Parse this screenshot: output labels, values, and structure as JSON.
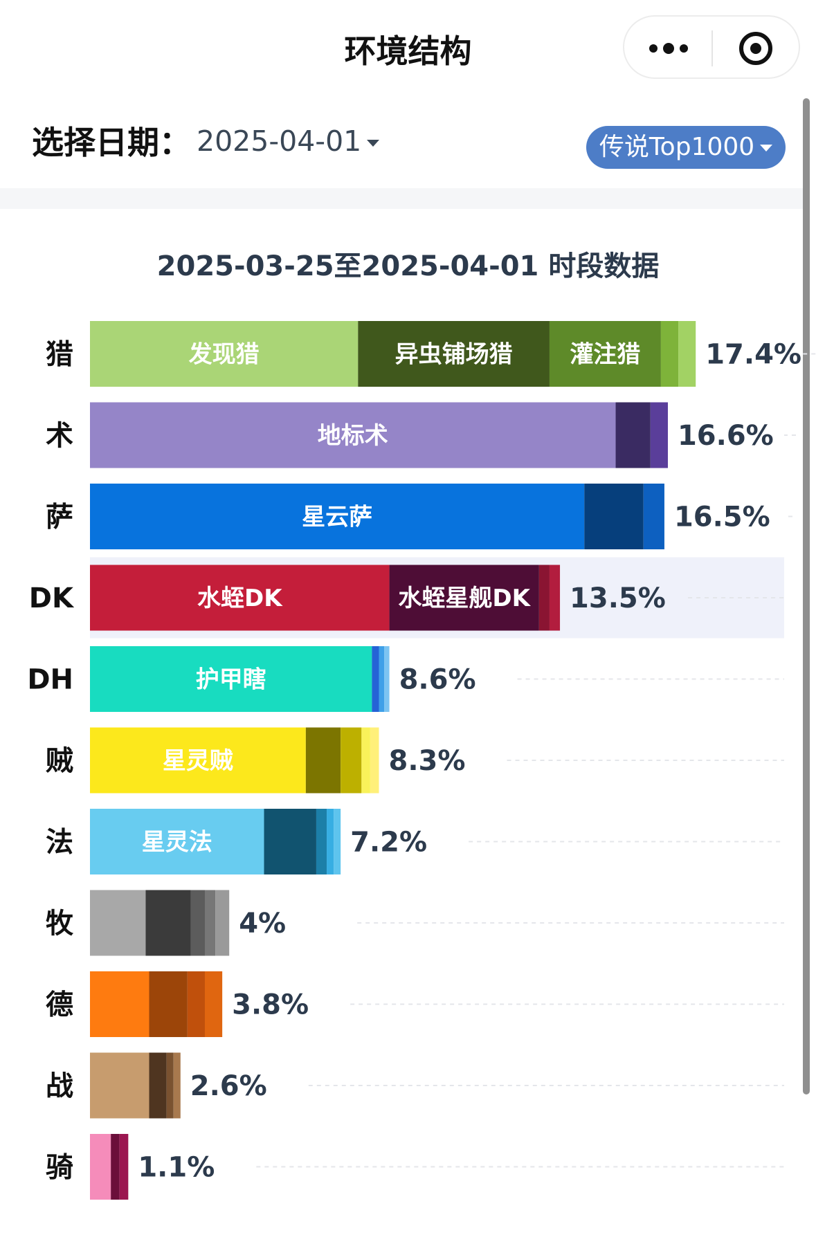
{
  "header": {
    "title": "环境结构",
    "more_icon": "more-dots-icon",
    "close_icon": "target-close-icon"
  },
  "filters": {
    "date_label": "选择日期：",
    "date_value": "2025-04-01",
    "mode_label": "传说Top1000"
  },
  "colors": {
    "mode_button": "#4d7dc7",
    "highlight_row": "#eff1fa",
    "title_text": "#2c3a4c"
  },
  "chart_data": {
    "type": "bar",
    "orientation": "horizontal",
    "stacked": true,
    "title": "2025-03-25至2025-04-01 时段数据",
    "unit": "%",
    "highlight": "DK",
    "categories": [
      "猎",
      "术",
      "萨",
      "DK",
      "DH",
      "贼",
      "法",
      "牧",
      "德",
      "战",
      "骑"
    ],
    "totals": [
      "17.4%",
      "16.6%",
      "16.5%",
      "13.5%",
      "8.6%",
      "8.3%",
      "7.2%",
      "4%",
      "3.8%",
      "2.6%",
      "1.1%"
    ],
    "rows": [
      {
        "category": "猎",
        "total": 17.4,
        "segments": [
          {
            "name": "发现猎",
            "value": 7.7,
            "color": "#aad576"
          },
          {
            "name": "异虫铺场猎",
            "value": 5.5,
            "color": "#40581c"
          },
          {
            "name": "灌注猎",
            "value": 3.2,
            "color": "#5e8a29"
          },
          {
            "name": "",
            "value": 0.5,
            "color": "#7eb33a"
          },
          {
            "name": "",
            "value": 0.5,
            "color": "#a2d264"
          }
        ]
      },
      {
        "category": "术",
        "total": 16.6,
        "segments": [
          {
            "name": "地标术",
            "value": 15.1,
            "color": "#9585c8"
          },
          {
            "name": "",
            "value": 1.0,
            "color": "#3a2b62"
          },
          {
            "name": "",
            "value": 0.5,
            "color": "#5a3e9a"
          }
        ]
      },
      {
        "category": "萨",
        "total": 16.5,
        "segments": [
          {
            "name": "星云萨",
            "value": 14.2,
            "color": "#0873dd"
          },
          {
            "name": "",
            "value": 1.7,
            "color": "#063f7c"
          },
          {
            "name": "",
            "value": 0.6,
            "color": "#0d60c0"
          }
        ]
      },
      {
        "category": "DK",
        "total": 13.5,
        "segments": [
          {
            "name": "水蛭DK",
            "value": 8.6,
            "color": "#c41e3a"
          },
          {
            "name": "水蛭星舰DK",
            "value": 4.3,
            "color": "#4e0d36"
          },
          {
            "name": "",
            "value": 0.3,
            "color": "#8a1432"
          },
          {
            "name": "",
            "value": 0.3,
            "color": "#b21d3e"
          }
        ]
      },
      {
        "category": "DH",
        "total": 8.6,
        "segments": [
          {
            "name": "护甲瞎",
            "value": 8.1,
            "color": "#18dcc0"
          },
          {
            "name": "",
            "value": 0.2,
            "color": "#2563d6"
          },
          {
            "name": "",
            "value": 0.15,
            "color": "#3fa0e8"
          },
          {
            "name": "",
            "value": 0.15,
            "color": "#7cc4f2"
          }
        ]
      },
      {
        "category": "贼",
        "total": 8.3,
        "segments": [
          {
            "name": "星灵贼",
            "value": 6.2,
            "color": "#fce81c"
          },
          {
            "name": "",
            "value": 1.0,
            "color": "#7c7500"
          },
          {
            "name": "",
            "value": 0.6,
            "color": "#bdb000"
          },
          {
            "name": "",
            "value": 0.25,
            "color": "#f9f25a"
          },
          {
            "name": "",
            "value": 0.25,
            "color": "#fff07a"
          }
        ]
      },
      {
        "category": "法",
        "total": 7.2,
        "segments": [
          {
            "name": "星灵法",
            "value": 5.0,
            "color": "#68ccf0"
          },
          {
            "name": "",
            "value": 1.5,
            "color": "#11536f"
          },
          {
            "name": "",
            "value": 0.3,
            "color": "#1c7fa8"
          },
          {
            "name": "",
            "value": 0.2,
            "color": "#37aee3"
          },
          {
            "name": "",
            "value": 0.2,
            "color": "#5ec4ee"
          }
        ]
      },
      {
        "category": "牧",
        "total": 4,
        "segments": [
          {
            "name": "",
            "value": 1.6,
            "color": "#a8a8a8"
          },
          {
            "name": "",
            "value": 1.3,
            "color": "#3b3b3b"
          },
          {
            "name": "",
            "value": 0.4,
            "color": "#5c5c5c"
          },
          {
            "name": "",
            "value": 0.3,
            "color": "#777777"
          },
          {
            "name": "",
            "value": 0.4,
            "color": "#9a9a9a"
          }
        ]
      },
      {
        "category": "德",
        "total": 3.8,
        "segments": [
          {
            "name": "",
            "value": 1.7,
            "color": "#fe7b10"
          },
          {
            "name": "",
            "value": 1.1,
            "color": "#9c4509"
          },
          {
            "name": "",
            "value": 0.5,
            "color": "#c0500c"
          },
          {
            "name": "",
            "value": 0.5,
            "color": "#e06610"
          }
        ]
      },
      {
        "category": "战",
        "total": 2.6,
        "segments": [
          {
            "name": "",
            "value": 1.7,
            "color": "#c79c6e"
          },
          {
            "name": "",
            "value": 0.5,
            "color": "#4f3520"
          },
          {
            "name": "",
            "value": 0.2,
            "color": "#7a5230"
          },
          {
            "name": "",
            "value": 0.2,
            "color": "#a8794e"
          }
        ]
      },
      {
        "category": "骑",
        "total": 1.1,
        "segments": [
          {
            "name": "",
            "value": 0.6,
            "color": "#f58cba"
          },
          {
            "name": "",
            "value": 0.25,
            "color": "#6b0f3a"
          },
          {
            "name": "",
            "value": 0.25,
            "color": "#9b1650"
          }
        ]
      }
    ]
  }
}
